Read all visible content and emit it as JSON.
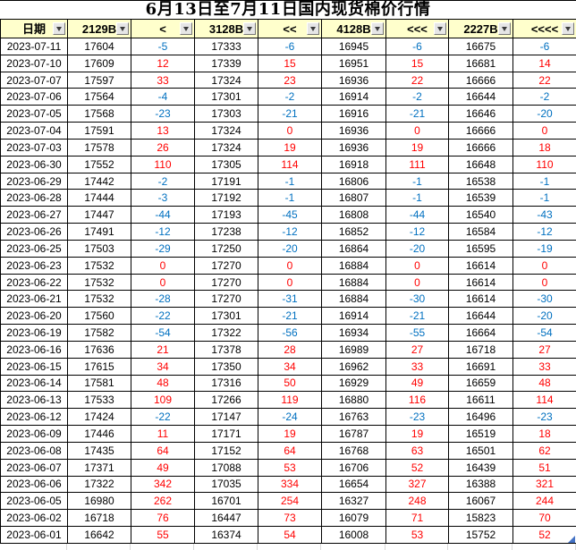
{
  "title": "6月13日至7月11日国内现货棉价行情",
  "columns": [
    {
      "name": "date",
      "label": "日期"
    },
    {
      "name": "2129b",
      "label": "2129B"
    },
    {
      "name": "change-1",
      "label": "<"
    },
    {
      "name": "3128b",
      "label": "3128B"
    },
    {
      "name": "change-2",
      "label": "<<"
    },
    {
      "name": "4128b",
      "label": "4128B"
    },
    {
      "name": "change-3",
      "label": "<<<"
    },
    {
      "name": "2227b",
      "label": "2227B"
    },
    {
      "name": "change-4",
      "label": "<<<<"
    }
  ],
  "rows": [
    [
      "2023-07-11",
      "17604",
      "-5",
      "17333",
      "-6",
      "16945",
      "-6",
      "16675",
      "-6"
    ],
    [
      "2023-07-10",
      "17609",
      "12",
      "17339",
      "15",
      "16951",
      "15",
      "16681",
      "14"
    ],
    [
      "2023-07-07",
      "17597",
      "33",
      "17324",
      "23",
      "16936",
      "22",
      "16666",
      "22"
    ],
    [
      "2023-07-06",
      "17564",
      "-4",
      "17301",
      "-2",
      "16914",
      "-2",
      "16644",
      "-2"
    ],
    [
      "2023-07-05",
      "17568",
      "-23",
      "17303",
      "-21",
      "16916",
      "-21",
      "16646",
      "-20"
    ],
    [
      "2023-07-04",
      "17591",
      "13",
      "17324",
      "0",
      "16936",
      "0",
      "16666",
      "0"
    ],
    [
      "2023-07-03",
      "17578",
      "26",
      "17324",
      "19",
      "16936",
      "19",
      "16666",
      "18"
    ],
    [
      "2023-06-30",
      "17552",
      "110",
      "17305",
      "114",
      "16918",
      "111",
      "16648",
      "110"
    ],
    [
      "2023-06-29",
      "17442",
      "-2",
      "17191",
      "-1",
      "16806",
      "-1",
      "16538",
      "-1"
    ],
    [
      "2023-06-28",
      "17444",
      "-3",
      "17192",
      "-1",
      "16807",
      "-1",
      "16539",
      "-1"
    ],
    [
      "2023-06-27",
      "17447",
      "-44",
      "17193",
      "-45",
      "16808",
      "-44",
      "16540",
      "-43"
    ],
    [
      "2023-06-26",
      "17491",
      "-12",
      "17238",
      "-12",
      "16852",
      "-12",
      "16584",
      "-12"
    ],
    [
      "2023-06-25",
      "17503",
      "-29",
      "17250",
      "-20",
      "16864",
      "-20",
      "16595",
      "-19"
    ],
    [
      "2023-06-23",
      "17532",
      "0",
      "17270",
      "0",
      "16884",
      "0",
      "16614",
      "0"
    ],
    [
      "2023-06-22",
      "17532",
      "0",
      "17270",
      "0",
      "16884",
      "0",
      "16614",
      "0"
    ],
    [
      "2023-06-21",
      "17532",
      "-28",
      "17270",
      "-31",
      "16884",
      "-30",
      "16614",
      "-30"
    ],
    [
      "2023-06-20",
      "17560",
      "-22",
      "17301",
      "-21",
      "16914",
      "-21",
      "16644",
      "-20"
    ],
    [
      "2023-06-19",
      "17582",
      "-54",
      "17322",
      "-56",
      "16934",
      "-55",
      "16664",
      "-54"
    ],
    [
      "2023-06-16",
      "17636",
      "21",
      "17378",
      "28",
      "16989",
      "27",
      "16718",
      "27"
    ],
    [
      "2023-06-15",
      "17615",
      "34",
      "17350",
      "34",
      "16962",
      "33",
      "16691",
      "33"
    ],
    [
      "2023-06-14",
      "17581",
      "48",
      "17316",
      "50",
      "16929",
      "49",
      "16659",
      "48"
    ],
    [
      "2023-06-13",
      "17533",
      "109",
      "17266",
      "119",
      "16880",
      "116",
      "16611",
      "114"
    ],
    [
      "2023-06-12",
      "17424",
      "-22",
      "17147",
      "-24",
      "16763",
      "-23",
      "16496",
      "-23"
    ],
    [
      "2023-06-09",
      "17446",
      "11",
      "17171",
      "19",
      "16787",
      "19",
      "16519",
      "18"
    ],
    [
      "2023-06-08",
      "17435",
      "64",
      "17152",
      "64",
      "16768",
      "63",
      "16501",
      "62"
    ],
    [
      "2023-06-07",
      "17371",
      "49",
      "17088",
      "53",
      "16706",
      "52",
      "16439",
      "51"
    ],
    [
      "2023-06-06",
      "17322",
      "342",
      "17035",
      "334",
      "16654",
      "327",
      "16388",
      "321"
    ],
    [
      "2023-06-05",
      "16980",
      "262",
      "16701",
      "254",
      "16327",
      "248",
      "16067",
      "244"
    ],
    [
      "2023-06-02",
      "16718",
      "76",
      "16447",
      "73",
      "16079",
      "71",
      "15823",
      "70"
    ],
    [
      "2023-06-01",
      "16642",
      "55",
      "16374",
      "54",
      "16008",
      "53",
      "15752",
      "52"
    ]
  ],
  "colors": {
    "positive_change": "#FF0000",
    "negative_change": "#0070C0",
    "header_bg": "#FFFFCC",
    "grid_line": "#000000",
    "corner_marker": "#4472C4"
  },
  "icons": {
    "filter_dropdown": "chevron-down-icon"
  }
}
